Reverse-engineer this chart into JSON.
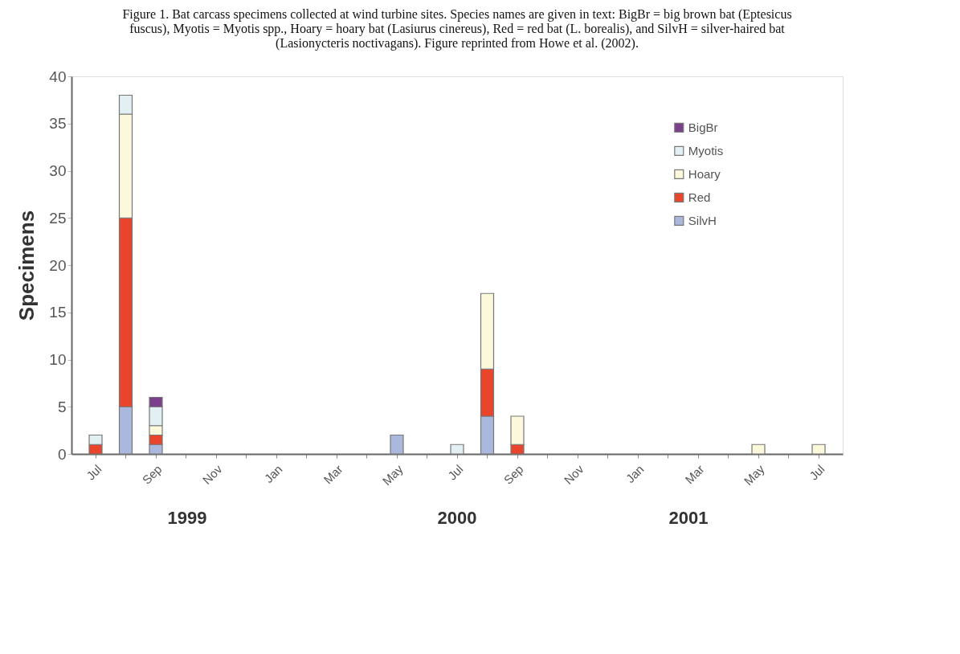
{
  "chart_data": {
    "type": "bar",
    "title": "Figure 1. Bat carcass specimens collected at wind turbine sites. Species names are given in text: BigBr = big brown bat (Eptesicus fuscus), Myotis = Myotis spp., Hoary = hoary bat (Lasiurus cinereus), Red = red bat (L. borealis), and SilvH = silver-haired bat (Lasionycteris noctivagans).  Figure reprinted from Howe et al. (2002).",
    "ylabel": "Specimens",
    "categories": [
      "Jul",
      null,
      "Sep",
      null,
      "Nov",
      null,
      "Jan",
      null,
      "Mar",
      null,
      "May",
      null,
      "Jul",
      null,
      "Sep",
      null,
      "Nov",
      null,
      "Jan",
      null,
      "Mar",
      null,
      "May",
      null,
      "Jul"
    ],
    "stacked": true,
    "series": [
      {
        "name": "SilvH",
        "color": "#a9b8dc",
        "values": [
          0,
          5,
          1,
          0,
          0,
          0,
          0,
          0,
          0,
          0,
          2,
          0,
          0,
          4,
          0,
          0,
          0,
          0,
          0,
          0,
          0,
          0,
          0,
          0,
          0
        ]
      },
      {
        "name": "Red",
        "color": "#e8452c",
        "values": [
          1,
          20,
          1,
          0,
          0,
          0,
          0,
          0,
          0,
          0,
          0,
          0,
          0,
          5,
          1,
          0,
          0,
          0,
          0,
          0,
          0,
          0,
          0,
          0,
          0
        ]
      },
      {
        "name": "Hoary",
        "color": "#fbf8dc",
        "values": [
          0,
          11,
          1,
          0,
          0,
          0,
          0,
          0,
          0,
          0,
          0,
          0,
          0,
          8,
          3,
          0,
          0,
          0,
          0,
          0,
          0,
          0,
          1,
          0,
          1
        ]
      },
      {
        "name": "Myotis",
        "color": "#e2f0f3",
        "values": [
          1,
          2,
          2,
          0,
          0,
          0,
          0,
          0,
          0,
          0,
          0,
          0,
          1,
          0,
          0,
          0,
          0,
          0,
          0,
          0,
          0,
          0,
          0,
          0,
          0
        ]
      },
      {
        "name": "BigBr",
        "color": "#7b3f8c",
        "values": [
          0,
          0,
          1,
          0,
          0,
          0,
          0,
          0,
          0,
          0,
          0,
          0,
          0,
          0,
          0,
          0,
          0,
          0,
          0,
          0,
          0,
          0,
          0,
          0,
          0
        ]
      }
    ],
    "ylim": [
      0,
      40
    ],
    "yticks": [
      0,
      5,
      10,
      15,
      20,
      25,
      30,
      35,
      40
    ],
    "grid": false,
    "legend": "right",
    "annotations": [
      "1999",
      "2000",
      "2001"
    ]
  }
}
